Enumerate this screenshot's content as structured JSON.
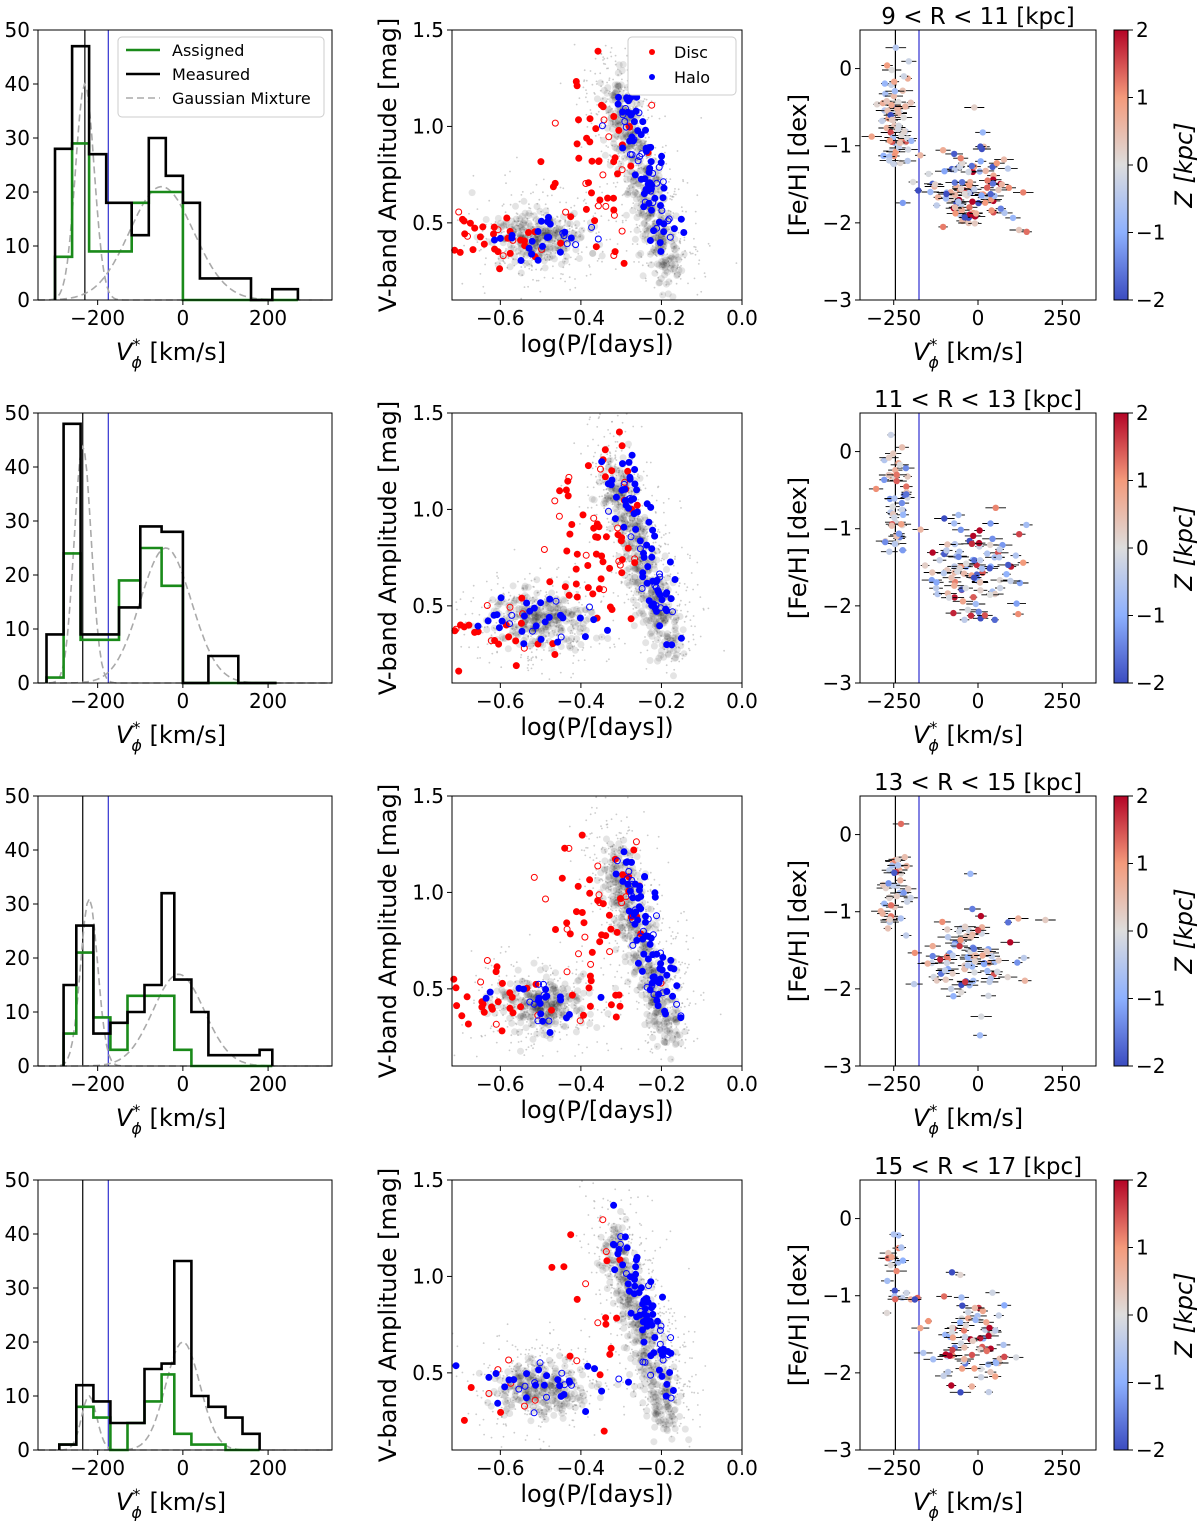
{
  "labels": {
    "x_vphi": "V",
    "x_vphi_sym": "ϕ",
    "x_vphi_sup": "*",
    "x_vphi_units": " [km/s]",
    "x_logp": "log(P/[days])",
    "y_amp": "V-band Amplitude [mag]",
    "y_feh": "[Fe/H] [dex]",
    "cbar": "Z [kpc]"
  },
  "legend_hist": [
    "Assigned",
    "Measured",
    "Gaussian Mixture"
  ],
  "legend_scatter": [
    "Disc",
    "Halo"
  ],
  "colors": {
    "assigned": "#1a8a1a",
    "measured": "#000000",
    "gmm": "#aaaaaa",
    "disc": "#ff0000",
    "halo": "#0000ff",
    "vline_black": "#000000",
    "vline_blue": "#3030d0"
  },
  "chart_data": [
    {
      "type": "bar",
      "panel": "histogram",
      "row": 1,
      "xlabel": "V*ϕ [km/s]",
      "ylabel": "",
      "xlim": [
        -340,
        350
      ],
      "ylim": [
        0,
        50
      ],
      "xticks": [
        -200,
        0,
        200
      ],
      "yticks": [
        0,
        10,
        20,
        30,
        40,
        50
      ],
      "bin_edges": [
        -300,
        -260,
        -220,
        -180,
        -120,
        -80,
        -40,
        0,
        40,
        80,
        160,
        210,
        270
      ],
      "series": [
        {
          "name": "Assigned",
          "values": [
            8,
            29,
            9,
            9,
            18,
            20,
            20,
            0,
            0,
            0,
            0,
            0
          ]
        },
        {
          "name": "Measured",
          "values": [
            28,
            47,
            27,
            18,
            12,
            30,
            23,
            18,
            4,
            4,
            0,
            2
          ]
        }
      ],
      "gmm_components": [
        {
          "mu": -230,
          "sigma": 22,
          "peak": 40
        },
        {
          "mu": -50,
          "sigma": 75,
          "peak": 21
        }
      ],
      "vlines": [
        -230,
        -175
      ]
    },
    {
      "type": "bar",
      "panel": "histogram",
      "row": 2,
      "xlabel": "V*ϕ [km/s]",
      "ylabel": "",
      "xlim": [
        -340,
        350
      ],
      "ylim": [
        0,
        50
      ],
      "xticks": [
        -200,
        0,
        200
      ],
      "yticks": [
        0,
        10,
        20,
        30,
        40,
        50
      ],
      "bin_edges": [
        -320,
        -280,
        -240,
        -200,
        -150,
        -100,
        -50,
        0,
        60,
        130,
        220
      ],
      "series": [
        {
          "name": "Assigned",
          "values": [
            1,
            24,
            8,
            8,
            19,
            25,
            18,
            0,
            0,
            0
          ]
        },
        {
          "name": "Measured",
          "values": [
            9,
            48,
            9,
            9,
            14,
            29,
            28,
            0,
            5,
            0
          ]
        }
      ],
      "gmm_components": [
        {
          "mu": -235,
          "sigma": 20,
          "peak": 44
        },
        {
          "mu": -40,
          "sigma": 60,
          "peak": 25
        }
      ],
      "vlines": [
        -235,
        -175
      ]
    },
    {
      "type": "bar",
      "panel": "histogram",
      "row": 3,
      "xlabel": "V*ϕ [km/s]",
      "ylabel": "",
      "xlim": [
        -340,
        350
      ],
      "ylim": [
        0,
        50
      ],
      "xticks": [
        -200,
        0,
        200
      ],
      "yticks": [
        0,
        10,
        20,
        30,
        40,
        50
      ],
      "bin_edges": [
        -280,
        -250,
        -210,
        -170,
        -130,
        -90,
        -50,
        -20,
        20,
        60,
        180,
        210
      ],
      "series": [
        {
          "name": "Assigned",
          "values": [
            6,
            21,
            9,
            3,
            13,
            13,
            13,
            3,
            0,
            0,
            0
          ]
        },
        {
          "name": "Measured",
          "values": [
            15,
            26,
            6,
            8,
            10,
            15,
            32,
            16,
            10,
            2,
            3
          ]
        }
      ],
      "gmm_components": [
        {
          "mu": -220,
          "sigma": 20,
          "peak": 31
        },
        {
          "mu": -10,
          "sigma": 60,
          "peak": 17
        }
      ],
      "vlines": [
        -235,
        -175
      ]
    },
    {
      "type": "bar",
      "panel": "histogram",
      "row": 4,
      "xlabel": "V*ϕ [km/s]",
      "ylabel": "",
      "xlim": [
        -340,
        350
      ],
      "ylim": [
        0,
        50
      ],
      "xticks": [
        -200,
        0,
        200
      ],
      "yticks": [
        0,
        10,
        20,
        30,
        40,
        50
      ],
      "bin_edges": [
        -290,
        -250,
        -210,
        -170,
        -130,
        -90,
        -50,
        -20,
        20,
        60,
        100,
        140,
        180
      ],
      "series": [
        {
          "name": "Assigned",
          "values": [
            1,
            8,
            6,
            0,
            5,
            9,
            14,
            3,
            1,
            1,
            0,
            0
          ]
        },
        {
          "name": "Measured",
          "values": [
            1,
            12,
            9,
            5,
            5,
            15,
            16,
            35,
            10,
            8,
            6,
            3
          ]
        }
      ],
      "gmm_components": [
        {
          "mu": -220,
          "sigma": 18,
          "peak": 10
        },
        {
          "mu": 0,
          "sigma": 40,
          "peak": 20
        }
      ],
      "vlines": [
        -235,
        -175
      ]
    },
    {
      "type": "scatter",
      "panel": "bailey",
      "row": 1,
      "xlabel": "log(P/[days])",
      "ylabel": "V-band Amplitude [mag]",
      "xlim": [
        -0.72,
        0.0
      ],
      "ylim": [
        0.1,
        1.5
      ],
      "xticks": [
        -0.6,
        -0.4,
        -0.2,
        0.0
      ],
      "yticks": [
        0.5,
        1.0,
        1.5
      ],
      "legend": [
        "Disc",
        "Halo"
      ],
      "seed": 11
    },
    {
      "type": "scatter",
      "panel": "bailey",
      "row": 2,
      "xlabel": "log(P/[days])",
      "ylabel": "V-band Amplitude [mag]",
      "xlim": [
        -0.72,
        0.0
      ],
      "ylim": [
        0.1,
        1.5
      ],
      "xticks": [
        -0.6,
        -0.4,
        -0.2,
        0.0
      ],
      "yticks": [
        0.5,
        1.0,
        1.5
      ],
      "seed": 23
    },
    {
      "type": "scatter",
      "panel": "bailey",
      "row": 3,
      "xlabel": "log(P/[days])",
      "ylabel": "V-band Amplitude [mag]",
      "xlim": [
        -0.72,
        0.0
      ],
      "ylim": [
        0.1,
        1.5
      ],
      "xticks": [
        -0.6,
        -0.4,
        -0.2,
        0.0
      ],
      "yticks": [
        0.5,
        1.0,
        1.5
      ],
      "seed": 37
    },
    {
      "type": "scatter",
      "panel": "bailey",
      "row": 4,
      "xlabel": "log(P/[days])",
      "ylabel": "V-band Amplitude [mag]",
      "xlim": [
        -0.72,
        0.0
      ],
      "ylim": [
        0.1,
        1.5
      ],
      "xticks": [
        -0.6,
        -0.4,
        -0.2,
        0.0
      ],
      "yticks": [
        0.5,
        1.0,
        1.5
      ],
      "seed": 41
    },
    {
      "type": "scatter",
      "panel": "metallicity",
      "row": 1,
      "title": "9 < R < 11 [kpc]",
      "xlabel": "V*ϕ [km/s]",
      "ylabel": "[Fe/H] [dex]",
      "xlim": [
        -350,
        350
      ],
      "ylim": [
        -3,
        0.5
      ],
      "xticks": [
        -250,
        0,
        250
      ],
      "yticks": [
        -3,
        -2,
        -1,
        0
      ],
      "colorbar": {
        "label": "Z [kpc]",
        "range": [
          -2,
          2
        ],
        "ticks": [
          2,
          1,
          0,
          -1,
          -2
        ]
      },
      "vlines": [
        -245,
        -175
      ],
      "seed": 51
    },
    {
      "type": "scatter",
      "panel": "metallicity",
      "row": 2,
      "title": "11 < R < 13 [kpc]",
      "xlabel": "V*ϕ [km/s]",
      "ylabel": "[Fe/H] [dex]",
      "xlim": [
        -350,
        350
      ],
      "ylim": [
        -3,
        0.5
      ],
      "xticks": [
        -250,
        0,
        250
      ],
      "yticks": [
        -3,
        -2,
        -1,
        0
      ],
      "colorbar": {
        "label": "Z [kpc]",
        "range": [
          -2,
          2
        ],
        "ticks": [
          2,
          1,
          0,
          -1,
          -2
        ]
      },
      "vlines": [
        -245,
        -175
      ],
      "seed": 63
    },
    {
      "type": "scatter",
      "panel": "metallicity",
      "row": 3,
      "title": "13 < R < 15 [kpc]",
      "xlabel": "V*ϕ [km/s]",
      "ylabel": "[Fe/H] [dex]",
      "xlim": [
        -350,
        350
      ],
      "ylim": [
        -3,
        0.5
      ],
      "xticks": [
        -250,
        0,
        250
      ],
      "yticks": [
        -3,
        -2,
        -1,
        0
      ],
      "colorbar": {
        "label": "Z [kpc]",
        "range": [
          -2,
          2
        ],
        "ticks": [
          2,
          1,
          0,
          -1,
          -2
        ]
      },
      "vlines": [
        -245,
        -175
      ],
      "seed": 77
    },
    {
      "type": "scatter",
      "panel": "metallicity",
      "row": 4,
      "title": "15 < R < 17 [kpc]",
      "xlabel": "V*ϕ [km/s]",
      "ylabel": "[Fe/H] [dex]",
      "xlim": [
        -350,
        350
      ],
      "ylim": [
        -3,
        0.5
      ],
      "xticks": [
        -250,
        0,
        250
      ],
      "yticks": [
        -3,
        -2,
        -1,
        0
      ],
      "colorbar": {
        "label": "Z [kpc]",
        "range": [
          -2,
          2
        ],
        "ticks": [
          2,
          1,
          0,
          -1,
          -2
        ]
      },
      "vlines": [
        -245,
        -175
      ],
      "seed": 89
    }
  ]
}
